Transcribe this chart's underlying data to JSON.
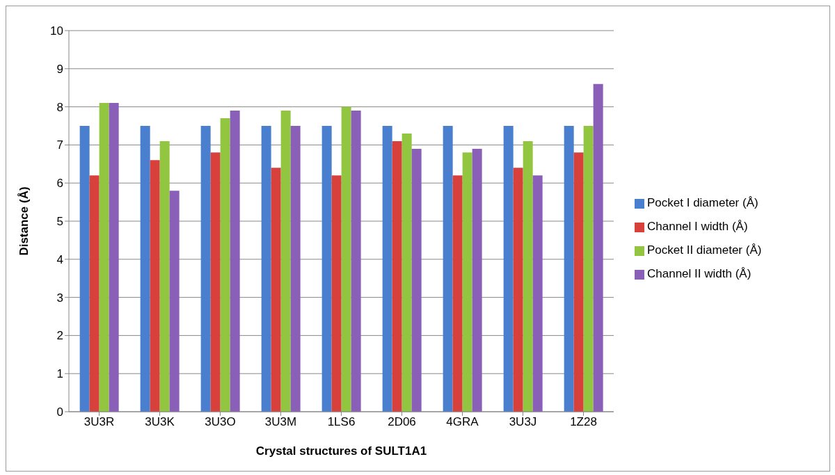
{
  "chart_data": {
    "type": "bar",
    "xlabel": "Crystal structures of SULT1A1",
    "ylabel": "Distance (Å)",
    "categories": [
      "3U3R",
      "3U3K",
      "3U3O",
      "3U3M",
      "1LS6",
      "2D06",
      "4GRA",
      "3U3J",
      "1Z28"
    ],
    "series": [
      {
        "name": "Pocket I diameter (Å)",
        "color": "#4a7fcf",
        "values": [
          7.5,
          7.5,
          7.5,
          7.5,
          7.5,
          7.5,
          7.5,
          7.5,
          7.5
        ]
      },
      {
        "name": "Channel I width (Å)",
        "color": "#d8413b",
        "values": [
          6.2,
          6.6,
          6.8,
          6.4,
          6.2,
          7.1,
          6.2,
          6.4,
          6.8
        ]
      },
      {
        "name": "Pocket II diameter (Å)",
        "color": "#92c640",
        "values": [
          8.1,
          7.1,
          7.7,
          7.9,
          8.0,
          7.3,
          6.8,
          7.1,
          7.5
        ]
      },
      {
        "name": "Channel II width (Å)",
        "color": "#8a5fb8",
        "values": [
          8.1,
          5.8,
          7.9,
          7.5,
          7.9,
          6.9,
          6.9,
          6.2,
          8.6
        ]
      }
    ],
    "ylim": [
      0,
      10
    ],
    "yticks": [
      0,
      1,
      2,
      3,
      4,
      5,
      6,
      7,
      8,
      9,
      10
    ],
    "grid": "y",
    "legend": "right"
  }
}
